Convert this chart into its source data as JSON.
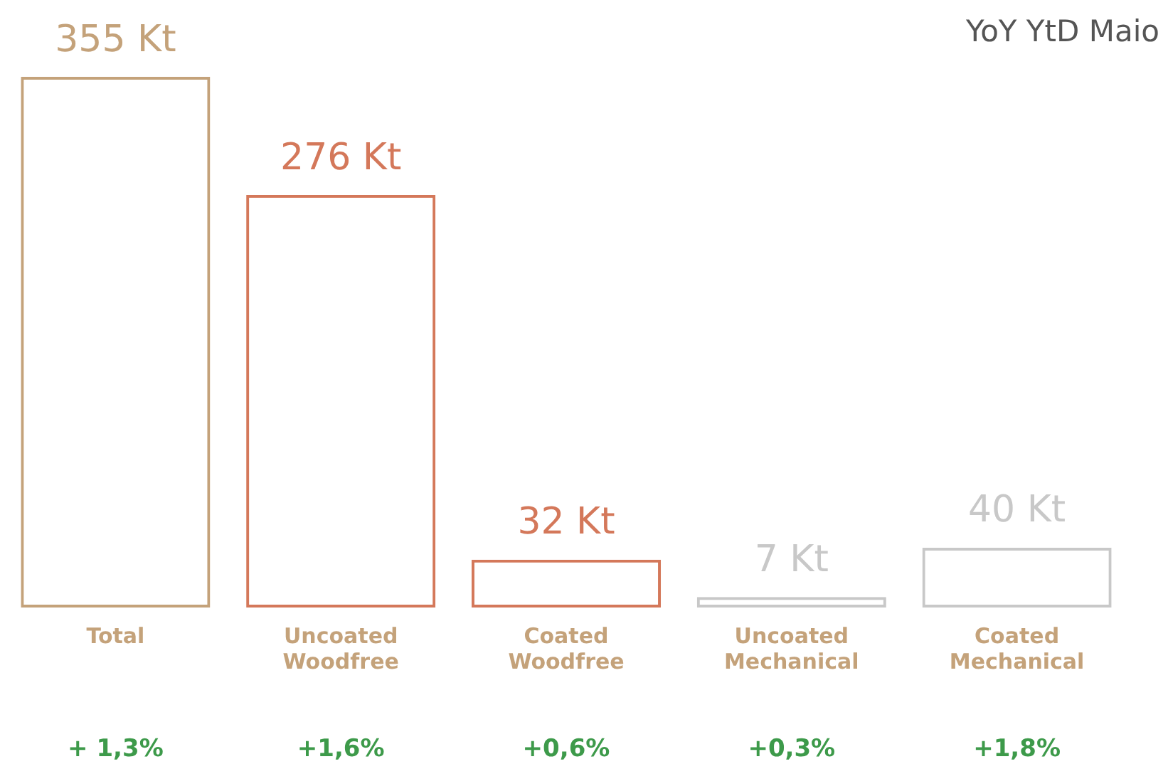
{
  "chart_data": {
    "type": "bar",
    "title": "YoY YtD Maio",
    "categories": [
      "Total",
      "Uncoated Woodfree",
      "Coated Woodfree",
      "Uncoated Mechanical",
      "Coated Mechanical"
    ],
    "values": [
      355,
      276,
      32,
      7,
      40
    ],
    "colors": [
      "#c4a27a",
      "#d4785a",
      "#d4785a",
      "#c8c8c8",
      "#c8c8c8"
    ],
    "value_labels": [
      "355 Kt",
      "276 Kt",
      "32 Kt",
      "7 Kt",
      "40 Kt"
    ],
    "annotations": [
      "+ 1,3%",
      "+1,6%",
      "+0,6%",
      "+0,3%",
      "+1,8%"
    ],
    "grid": false,
    "legend": false
  }
}
